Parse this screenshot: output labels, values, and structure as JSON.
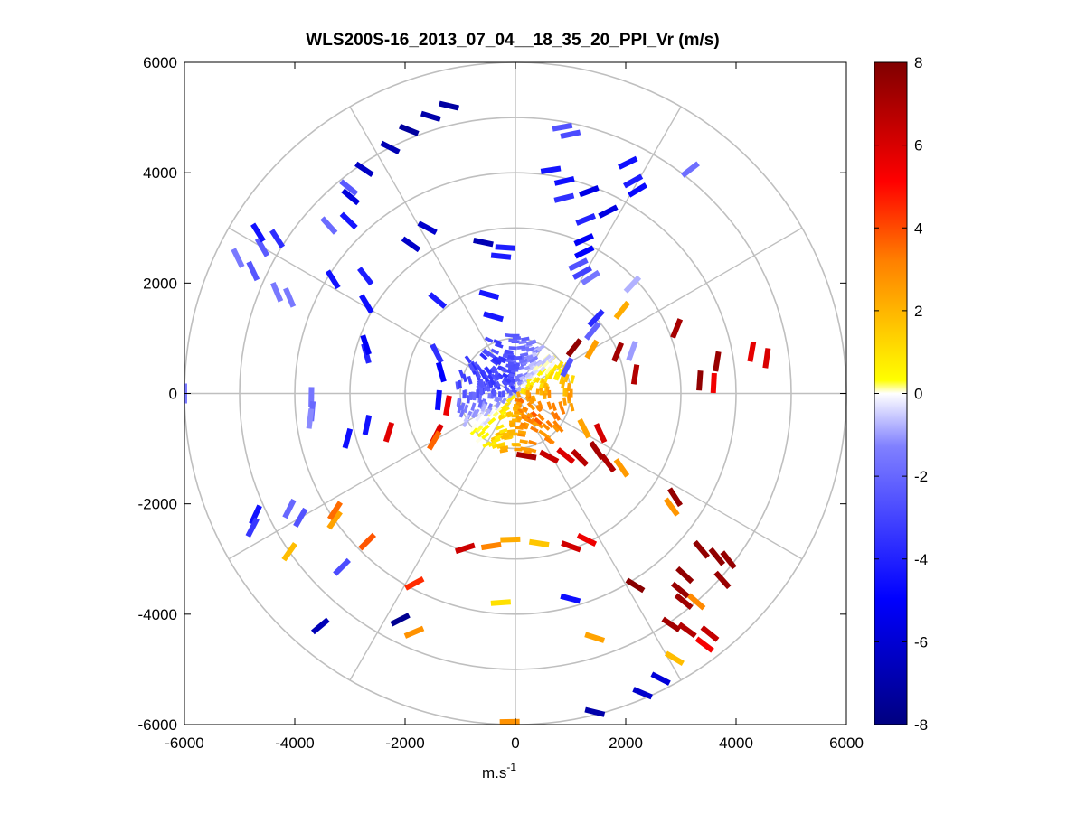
{
  "chart_data": {
    "type": "scatter",
    "subtype": "polar-ppi-scan",
    "title": "WLS200S-16_2013_07_04__18_35_20_PPI_Vr (m/s)",
    "xlabel": "m.s",
    "xlabel_superscript": "-1",
    "ylabel": "",
    "xlim": [
      -6000,
      6000
    ],
    "ylim": [
      -6000,
      6000
    ],
    "xticks": [
      -6000,
      -4000,
      -2000,
      0,
      2000,
      4000,
      6000
    ],
    "yticks": [
      -6000,
      -4000,
      -2000,
      0,
      2000,
      4000,
      6000
    ],
    "xtick_labels": [
      "-6000",
      "-4000",
      "-2000",
      "0",
      "2000",
      "4000",
      "6000"
    ],
    "ytick_labels": [
      "-6000",
      "-4000",
      "-2000",
      "0",
      "2000",
      "4000",
      "6000"
    ],
    "polar_grid": {
      "range_rings": [
        1000,
        2000,
        3000,
        4000,
        5000,
        6000
      ],
      "spoke_angles_deg": [
        0,
        30,
        60,
        90,
        120,
        150,
        180,
        210,
        240,
        270,
        300,
        330
      ],
      "grid_color": "#bfbfbf"
    },
    "colorbar": {
      "range": [
        -8,
        8
      ],
      "ticks": [
        8,
        6,
        4,
        2,
        0,
        -2,
        -4,
        -6,
        -8
      ],
      "tick_labels": [
        "8",
        "6",
        "4",
        "2",
        "0",
        "-2",
        "-4",
        "-6",
        "-8"
      ],
      "colormap": [
        "#000080",
        "#0000ff",
        "#8080ff",
        "#ffffff",
        "#ffff00",
        "#ff8000",
        "#ff0000",
        "#800000"
      ]
    },
    "near_field": {
      "radius_max": 1050,
      "description_values": "dense returns within ~1000 m: negative velocities (blue, ~-2 to -3 m/s) to the north-west sector, positive velocities (yellow to orange, ~+1 to +4 m/s) to the south-east sector"
    },
    "points": [
      {
        "r": 5350,
        "az": -13,
        "v": -7.2
      },
      {
        "r": 5250,
        "az": -17,
        "v": -7.0
      },
      {
        "r": 5150,
        "az": -22,
        "v": -7.3
      },
      {
        "r": 5000,
        "az": -27,
        "v": -6.8
      },
      {
        "r": 4900,
        "az": -34,
        "v": -6.4
      },
      {
        "r": 4650,
        "az": -40,
        "v": -5.8
      },
      {
        "r": 4900,
        "az": 10,
        "v": -2.6
      },
      {
        "r": 4800,
        "az": 12,
        "v": -2.8
      },
      {
        "r": 4650,
        "az": 26,
        "v": -4.6
      },
      {
        "r": 4400,
        "az": 29,
        "v": -4.2
      },
      {
        "r": 4300,
        "az": 31,
        "v": -4.8
      },
      {
        "r": 5150,
        "az": 38,
        "v": -1.8
      },
      {
        "r": 4100,
        "az": 9,
        "v": -4.4
      },
      {
        "r": 3950,
        "az": 13,
        "v": -4.6
      },
      {
        "r": 3650,
        "az": 14,
        "v": -3.6
      },
      {
        "r": 3900,
        "az": 20,
        "v": -5.6
      },
      {
        "r": 3700,
        "az": 27,
        "v": -5.7
      },
      {
        "r": 3400,
        "az": 22,
        "v": -4.0
      },
      {
        "r": 3050,
        "az": 24,
        "v": -5.2
      },
      {
        "r": 2850,
        "az": 26,
        "v": -5.0
      },
      {
        "r": 2600,
        "az": 26,
        "v": -2.6
      },
      {
        "r": 2500,
        "az": 29,
        "v": -3.1
      },
      {
        "r": 2500,
        "az": 33,
        "v": -1.6
      },
      {
        "r": 2900,
        "az": 47,
        "v": -0.8
      },
      {
        "r": 2450,
        "az": 52,
        "v": 2.2
      },
      {
        "r": 3150,
        "az": 68,
        "v": 7.1
      },
      {
        "r": 2250,
        "az": 70,
        "v": -1.0
      },
      {
        "r": 2000,
        "az": 68,
        "v": 7.2
      },
      {
        "r": 4350,
        "az": 80,
        "v": 5.6
      },
      {
        "r": 4600,
        "az": 82,
        "v": 5.9
      },
      {
        "r": 3700,
        "az": 81,
        "v": 7.4
      },
      {
        "r": 3350,
        "az": 86,
        "v": 7.6
      },
      {
        "r": 3600,
        "az": 87,
        "v": 5.3
      },
      {
        "r": 2200,
        "az": 81,
        "v": 6.8
      },
      {
        "r": 5150,
        "az": -57,
        "v": -3.7
      },
      {
        "r": 5300,
        "az": -60,
        "v": -2.4
      },
      {
        "r": 5250,
        "az": -65,
        "v": -2.5
      },
      {
        "r": 5600,
        "az": -64,
        "v": -1.5
      },
      {
        "r": 4700,
        "az": -67,
        "v": -1.5
      },
      {
        "r": 4450,
        "az": -67,
        "v": -1.5
      },
      {
        "r": 5500,
        "az": -58,
        "v": -4.5
      },
      {
        "r": 4550,
        "az": -48,
        "v": -1.9
      },
      {
        "r": 4800,
        "az": -39,
        "v": -2.4
      },
      {
        "r": 4350,
        "az": -44,
        "v": -4.4
      },
      {
        "r": 3300,
        "az": -35,
        "v": -6.3
      },
      {
        "r": 3450,
        "az": -52,
        "v": -4.2
      },
      {
        "r": 3900,
        "az": -58,
        "v": -4.5
      },
      {
        "r": 3150,
        "az": -59,
        "v": -4.6
      },
      {
        "r": 3400,
        "az": -28,
        "v": -6.2
      },
      {
        "r": 2800,
        "az": -12,
        "v": -6.8
      },
      {
        "r": 2500,
        "az": -6,
        "v": -4.2
      },
      {
        "r": 2650,
        "az": -4,
        "v": -4.1
      },
      {
        "r": 2200,
        "az": -40,
        "v": -4.2
      },
      {
        "r": 2800,
        "az": -75,
        "v": -4.0
      },
      {
        "r": 2850,
        "az": -72,
        "v": -5.2
      },
      {
        "r": 1850,
        "az": -15,
        "v": -4.4
      },
      {
        "r": 6000,
        "az": -90,
        "v": -1.5
      },
      {
        "r": 3700,
        "az": -91,
        "v": -1.6
      },
      {
        "r": 3700,
        "az": -95,
        "v": -2.0
      },
      {
        "r": 3750,
        "az": -97,
        "v": -1.2
      },
      {
        "r": 3150,
        "az": -105,
        "v": -4.6
      },
      {
        "r": 2750,
        "az": -102,
        "v": -4.5
      },
      {
        "r": 2400,
        "az": -107,
        "v": 5.7
      },
      {
        "r": 4500,
        "az": -120,
        "v": -2.6
      },
      {
        "r": 4600,
        "az": -117,
        "v": -2.0
      },
      {
        "r": 5200,
        "az": -115,
        "v": -4.5
      },
      {
        "r": 5350,
        "az": -117,
        "v": -3.4
      },
      {
        "r": 4000,
        "az": -125,
        "v": 2.4
      },
      {
        "r": 3900,
        "az": -123,
        "v": 3.5
      },
      {
        "r": 3800,
        "az": -135,
        "v": 3.8
      },
      {
        "r": 5000,
        "az": -125,
        "v": 1.8
      },
      {
        "r": 4450,
        "az": -135,
        "v": -2.8
      },
      {
        "r": 5500,
        "az": -140,
        "v": -6.7
      },
      {
        "r": 4600,
        "az": -153,
        "v": -7.6
      },
      {
        "r": 4700,
        "az": -157,
        "v": 2.8
      },
      {
        "r": 3900,
        "az": -152,
        "v": 4.4
      },
      {
        "r": 2950,
        "az": -162,
        "v": 6.2
      },
      {
        "r": 2800,
        "az": -171,
        "v": 3.1
      },
      {
        "r": 2650,
        "az": -178,
        "v": 2.2
      },
      {
        "r": 3800,
        "az": -176,
        "v": 1.0
      },
      {
        "r": 5950,
        "az": -179,
        "v": 2.8
      },
      {
        "r": 5950,
        "az": 166,
        "v": -7.0
      },
      {
        "r": 5900,
        "az": 157,
        "v": -6.2
      },
      {
        "r": 5800,
        "az": 153,
        "v": -5.9
      },
      {
        "r": 5600,
        "az": 149,
        "v": 1.8
      },
      {
        "r": 5700,
        "az": 143,
        "v": 5.2
      },
      {
        "r": 5600,
        "az": 141,
        "v": 6.4
      },
      {
        "r": 5000,
        "az": 139,
        "v": 3.0
      },
      {
        "r": 4650,
        "az": 162,
        "v": 2.4
      },
      {
        "r": 3850,
        "az": 165,
        "v": -4.6
      },
      {
        "r": 2750,
        "az": 171,
        "v": 1.6
      },
      {
        "r": 2950,
        "az": 160,
        "v": 6.1
      },
      {
        "r": 2950,
        "az": 154,
        "v": 5.4
      },
      {
        "r": 4100,
        "az": 148,
        "v": 7.8
      },
      {
        "r": 3500,
        "az": 126,
        "v": 2.7
      },
      {
        "r": 3450,
        "az": 123,
        "v": 7.5
      },
      {
        "r": 2350,
        "az": 125,
        "v": 2.6
      },
      {
        "r": 2100,
        "az": 127,
        "v": 6.9
      },
      {
        "r": 4400,
        "az": 130,
        "v": 7.6
      },
      {
        "r": 4700,
        "az": 129,
        "v": 7.6
      },
      {
        "r": 4900,
        "az": 128,
        "v": 7.5
      },
      {
        "r": 5050,
        "az": 132,
        "v": 7.4
      },
      {
        "r": 4500,
        "az": 137,
        "v": 7.6
      },
      {
        "r": 4650,
        "az": 140,
        "v": 7.4
      },
      {
        "r": 4850,
        "az": 141,
        "v": 7.3
      },
      {
        "r": 5050,
        "az": 146,
        "v": 7.2
      },
      {
        "r": 5300,
        "az": 144,
        "v": 6.8
      },
      {
        "r": 1600,
        "az": 60,
        "v": 2.5
      },
      {
        "r": 1800,
        "az": 51,
        "v": -2.2
      },
      {
        "r": 2000,
        "az": 47,
        "v": -3.8
      },
      {
        "r": 1450,
        "az": -16,
        "v": -4.3
      },
      {
        "r": 1350,
        "az": 52,
        "v": 7.6
      },
      {
        "r": 1050,
        "az": 63,
        "v": -2.6
      },
      {
        "r": 1600,
        "az": -63,
        "v": -3.6
      },
      {
        "r": 1400,
        "az": -74,
        "v": -5.0
      },
      {
        "r": 1400,
        "az": -95,
        "v": -4.8
      },
      {
        "r": 1250,
        "az": -100,
        "v": 5.4
      },
      {
        "r": 1600,
        "az": -117,
        "v": 5.8
      },
      {
        "r": 1700,
        "az": -120,
        "v": 3.6
      },
      {
        "r": 1400,
        "az": 117,
        "v": 2.4
      },
      {
        "r": 1700,
        "az": 115,
        "v": 6.0
      },
      {
        "r": 1300,
        "az": 152,
        "v": 6.3
      },
      {
        "r": 1450,
        "az": 141,
        "v": 5.8
      },
      {
        "r": 1650,
        "az": 135,
        "v": 6.7
      },
      {
        "r": 1800,
        "az": 125,
        "v": 7.1
      },
      {
        "r": 1150,
        "az": 170,
        "v": 7.0
      }
    ]
  }
}
